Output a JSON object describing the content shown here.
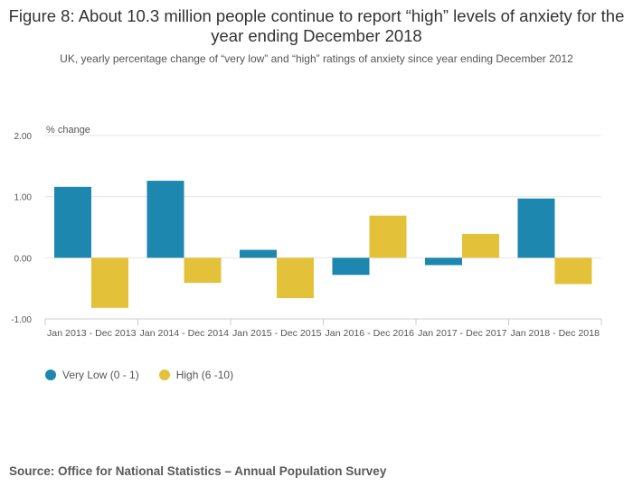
{
  "title": "Figure 8: About 10.3 million people continue to report “high” levels of anxiety for the year ending December 2018",
  "subtitle": "UK, yearly percentage change of “very low” and “high” ratings of anxiety since year ending December 2012",
  "source": "Source: Office for National Statistics – Annual Population Survey",
  "colors": {
    "very_low": "#1d87b0",
    "high": "#e3c23a",
    "grid": "#e6e6e6",
    "axis": "#cccccc"
  },
  "chart_data": {
    "type": "bar",
    "ylabel": "% change",
    "xlabel": "",
    "ylim": [
      -1.0,
      2.0
    ],
    "yticks": [
      2.0,
      1.0,
      0.0,
      -1.0
    ],
    "ytick_labels": [
      "2.00",
      "1.00",
      "0.00",
      "-1.00"
    ],
    "grid": true,
    "legend_position": "bottom-left",
    "categories": [
      "Jan 2013 - Dec 2013",
      "Jan 2014 - Dec 2014",
      "Jan 2015 - Dec 2015",
      "Jan 2016 - Dec 2016",
      "Jan 2017 - Dec 2017",
      "Jan 2018 - Dec 2018"
    ],
    "series": [
      {
        "name": "Very Low (0 - 1)",
        "color": "#1d87b0",
        "values": [
          1.16,
          1.26,
          0.13,
          -0.28,
          -0.12,
          0.97
        ]
      },
      {
        "name": "High (6 -10)",
        "color": "#e3c23a",
        "values": [
          -0.82,
          -0.41,
          -0.66,
          0.69,
          0.39,
          -0.43
        ]
      }
    ]
  }
}
